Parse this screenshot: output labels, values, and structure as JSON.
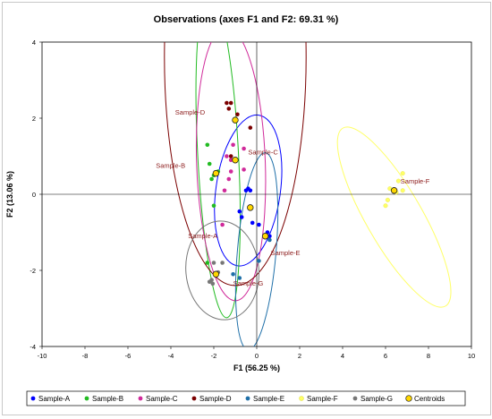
{
  "chart_data": {
    "type": "scatter",
    "title": "Observations (axes F1 and F2: 69.31 %)",
    "xlabel": "F1 (56.25 %)",
    "ylabel": "F2 (13.06 %)",
    "xlim": [
      -10,
      10
    ],
    "ylim": [
      -4,
      4
    ],
    "x_ticks": [
      "-10",
      "-8",
      "-6",
      "-4",
      "-2",
      "0",
      "2",
      "4",
      "6",
      "8",
      "10"
    ],
    "y_ticks": [
      "-4",
      "-2",
      "0",
      "2",
      "4"
    ],
    "grid": false,
    "legend_position": "bottom",
    "series": [
      {
        "name": "Sample-A",
        "color": "#0000ff",
        "points": [
          [
            -0.5,
            0.1
          ],
          [
            -0.4,
            0.15
          ],
          [
            -0.8,
            -0.45
          ],
          [
            -0.7,
            -0.6
          ],
          [
            -0.2,
            -0.75
          ],
          [
            0.1,
            -0.8
          ],
          [
            0.5,
            -1.0
          ],
          [
            0.6,
            -1.1
          ],
          [
            -0.3,
            0.1
          ]
        ]
      },
      {
        "name": "Sample-B",
        "color": "#22bb22",
        "points": [
          [
            -2.3,
            1.3
          ],
          [
            -2.2,
            0.8
          ],
          [
            -2.1,
            0.4
          ],
          [
            -2.0,
            0.5
          ],
          [
            -1.8,
            0.6
          ],
          [
            -2.0,
            -0.3
          ],
          [
            -2.3,
            -1.8
          ]
        ]
      },
      {
        "name": "Sample-C",
        "color": "#d02a9a",
        "points": [
          [
            -1.4,
            1.0
          ],
          [
            -1.2,
            0.9
          ],
          [
            -1.2,
            0.6
          ],
          [
            -1.1,
            1.3
          ],
          [
            -0.6,
            1.2
          ],
          [
            -0.6,
            0.65
          ],
          [
            -1.3,
            0.4
          ],
          [
            -1.5,
            0.1
          ],
          [
            -1.6,
            -0.8
          ]
        ]
      },
      {
        "name": "Sample-D",
        "color": "#7b0000",
        "points": [
          [
            -1.4,
            2.4
          ],
          [
            -1.2,
            2.4
          ],
          [
            -1.3,
            2.25
          ],
          [
            -0.9,
            2.1
          ],
          [
            -0.3,
            1.75
          ],
          [
            -1.2,
            1.0
          ]
        ]
      },
      {
        "name": "Sample-E",
        "color": "#1e6fa8",
        "points": [
          [
            0.6,
            -1.2
          ],
          [
            0.4,
            -1.1
          ],
          [
            0.1,
            -1.75
          ],
          [
            -0.8,
            -2.2
          ],
          [
            -1.1,
            -2.1
          ]
        ]
      },
      {
        "name": "Sample-F",
        "color": "#ffff66",
        "points": [
          [
            6.8,
            0.55
          ],
          [
            6.6,
            0.35
          ],
          [
            6.5,
            0.05
          ],
          [
            6.1,
            -0.15
          ],
          [
            6.0,
            -0.3
          ],
          [
            6.8,
            0.1
          ],
          [
            6.2,
            0.15
          ]
        ]
      },
      {
        "name": "Sample-G",
        "color": "#777777",
        "points": [
          [
            -2.0,
            -1.8
          ],
          [
            -1.6,
            -1.8
          ],
          [
            -2.2,
            -2.3
          ],
          [
            -2.05,
            -2.35
          ],
          [
            -1.8,
            -2.05
          ],
          [
            -2.1,
            -2.25
          ]
        ]
      }
    ],
    "centroids": {
      "name": "Centroids",
      "color": "#ffd700",
      "points": [
        [
          -0.3,
          -0.35
        ],
        [
          -1.9,
          0.55
        ],
        [
          -1.0,
          0.9
        ],
        [
          -1.0,
          1.95
        ],
        [
          0.4,
          -1.1
        ],
        [
          6.4,
          0.1
        ],
        [
          -1.9,
          -2.1
        ]
      ]
    },
    "point_labels": [
      {
        "text": "Sample-D",
        "x": -3.8,
        "y": 2.1
      },
      {
        "text": "Sample-B",
        "x": -4.7,
        "y": 0.7
      },
      {
        "text": "Sample-C",
        "x": -0.4,
        "y": 1.05
      },
      {
        "text": "Sample-A",
        "x": -3.2,
        "y": -1.15
      },
      {
        "text": "Sample-E",
        "x": 0.65,
        "y": -1.6
      },
      {
        "text": "Sample-G",
        "x": -1.1,
        "y": -2.4
      },
      {
        "text": "Sample-F",
        "x": 6.7,
        "y": 0.28
      }
    ],
    "ellipses": [
      {
        "series": "Sample-A",
        "cx": -0.4,
        "cy": 0.1,
        "rx": 1.5,
        "ry": 2.0,
        "angle": 8,
        "color": "#0000ff"
      },
      {
        "series": "Sample-B",
        "cx": -1.8,
        "cy": 1.05,
        "rx": 0.95,
        "ry": 4.3,
        "angle": -3,
        "color": "#22bb22"
      },
      {
        "series": "Sample-C",
        "cx": -1.2,
        "cy": 0.8,
        "rx": 1.6,
        "ry": 3.6,
        "angle": -2,
        "color": "#d02a9a"
      },
      {
        "series": "Sample-D",
        "cx": -1.0,
        "cy": 3.6,
        "rx": 3.3,
        "ry": 6.0,
        "angle": 0,
        "color": "#7b0000"
      },
      {
        "series": "Sample-E",
        "cx": 0.0,
        "cy": -1.5,
        "rx": 0.9,
        "ry": 2.6,
        "angle": 5,
        "color": "#1e6fa8"
      },
      {
        "series": "Sample-F",
        "cx": 6.4,
        "cy": -0.6,
        "rx": 1.3,
        "ry": 2.7,
        "angle": -30,
        "color": "#ffff66"
      },
      {
        "series": "Sample-G",
        "cx": -1.6,
        "cy": -2.0,
        "rx": 1.7,
        "ry": 1.3,
        "angle": -5,
        "color": "#777777"
      }
    ]
  }
}
